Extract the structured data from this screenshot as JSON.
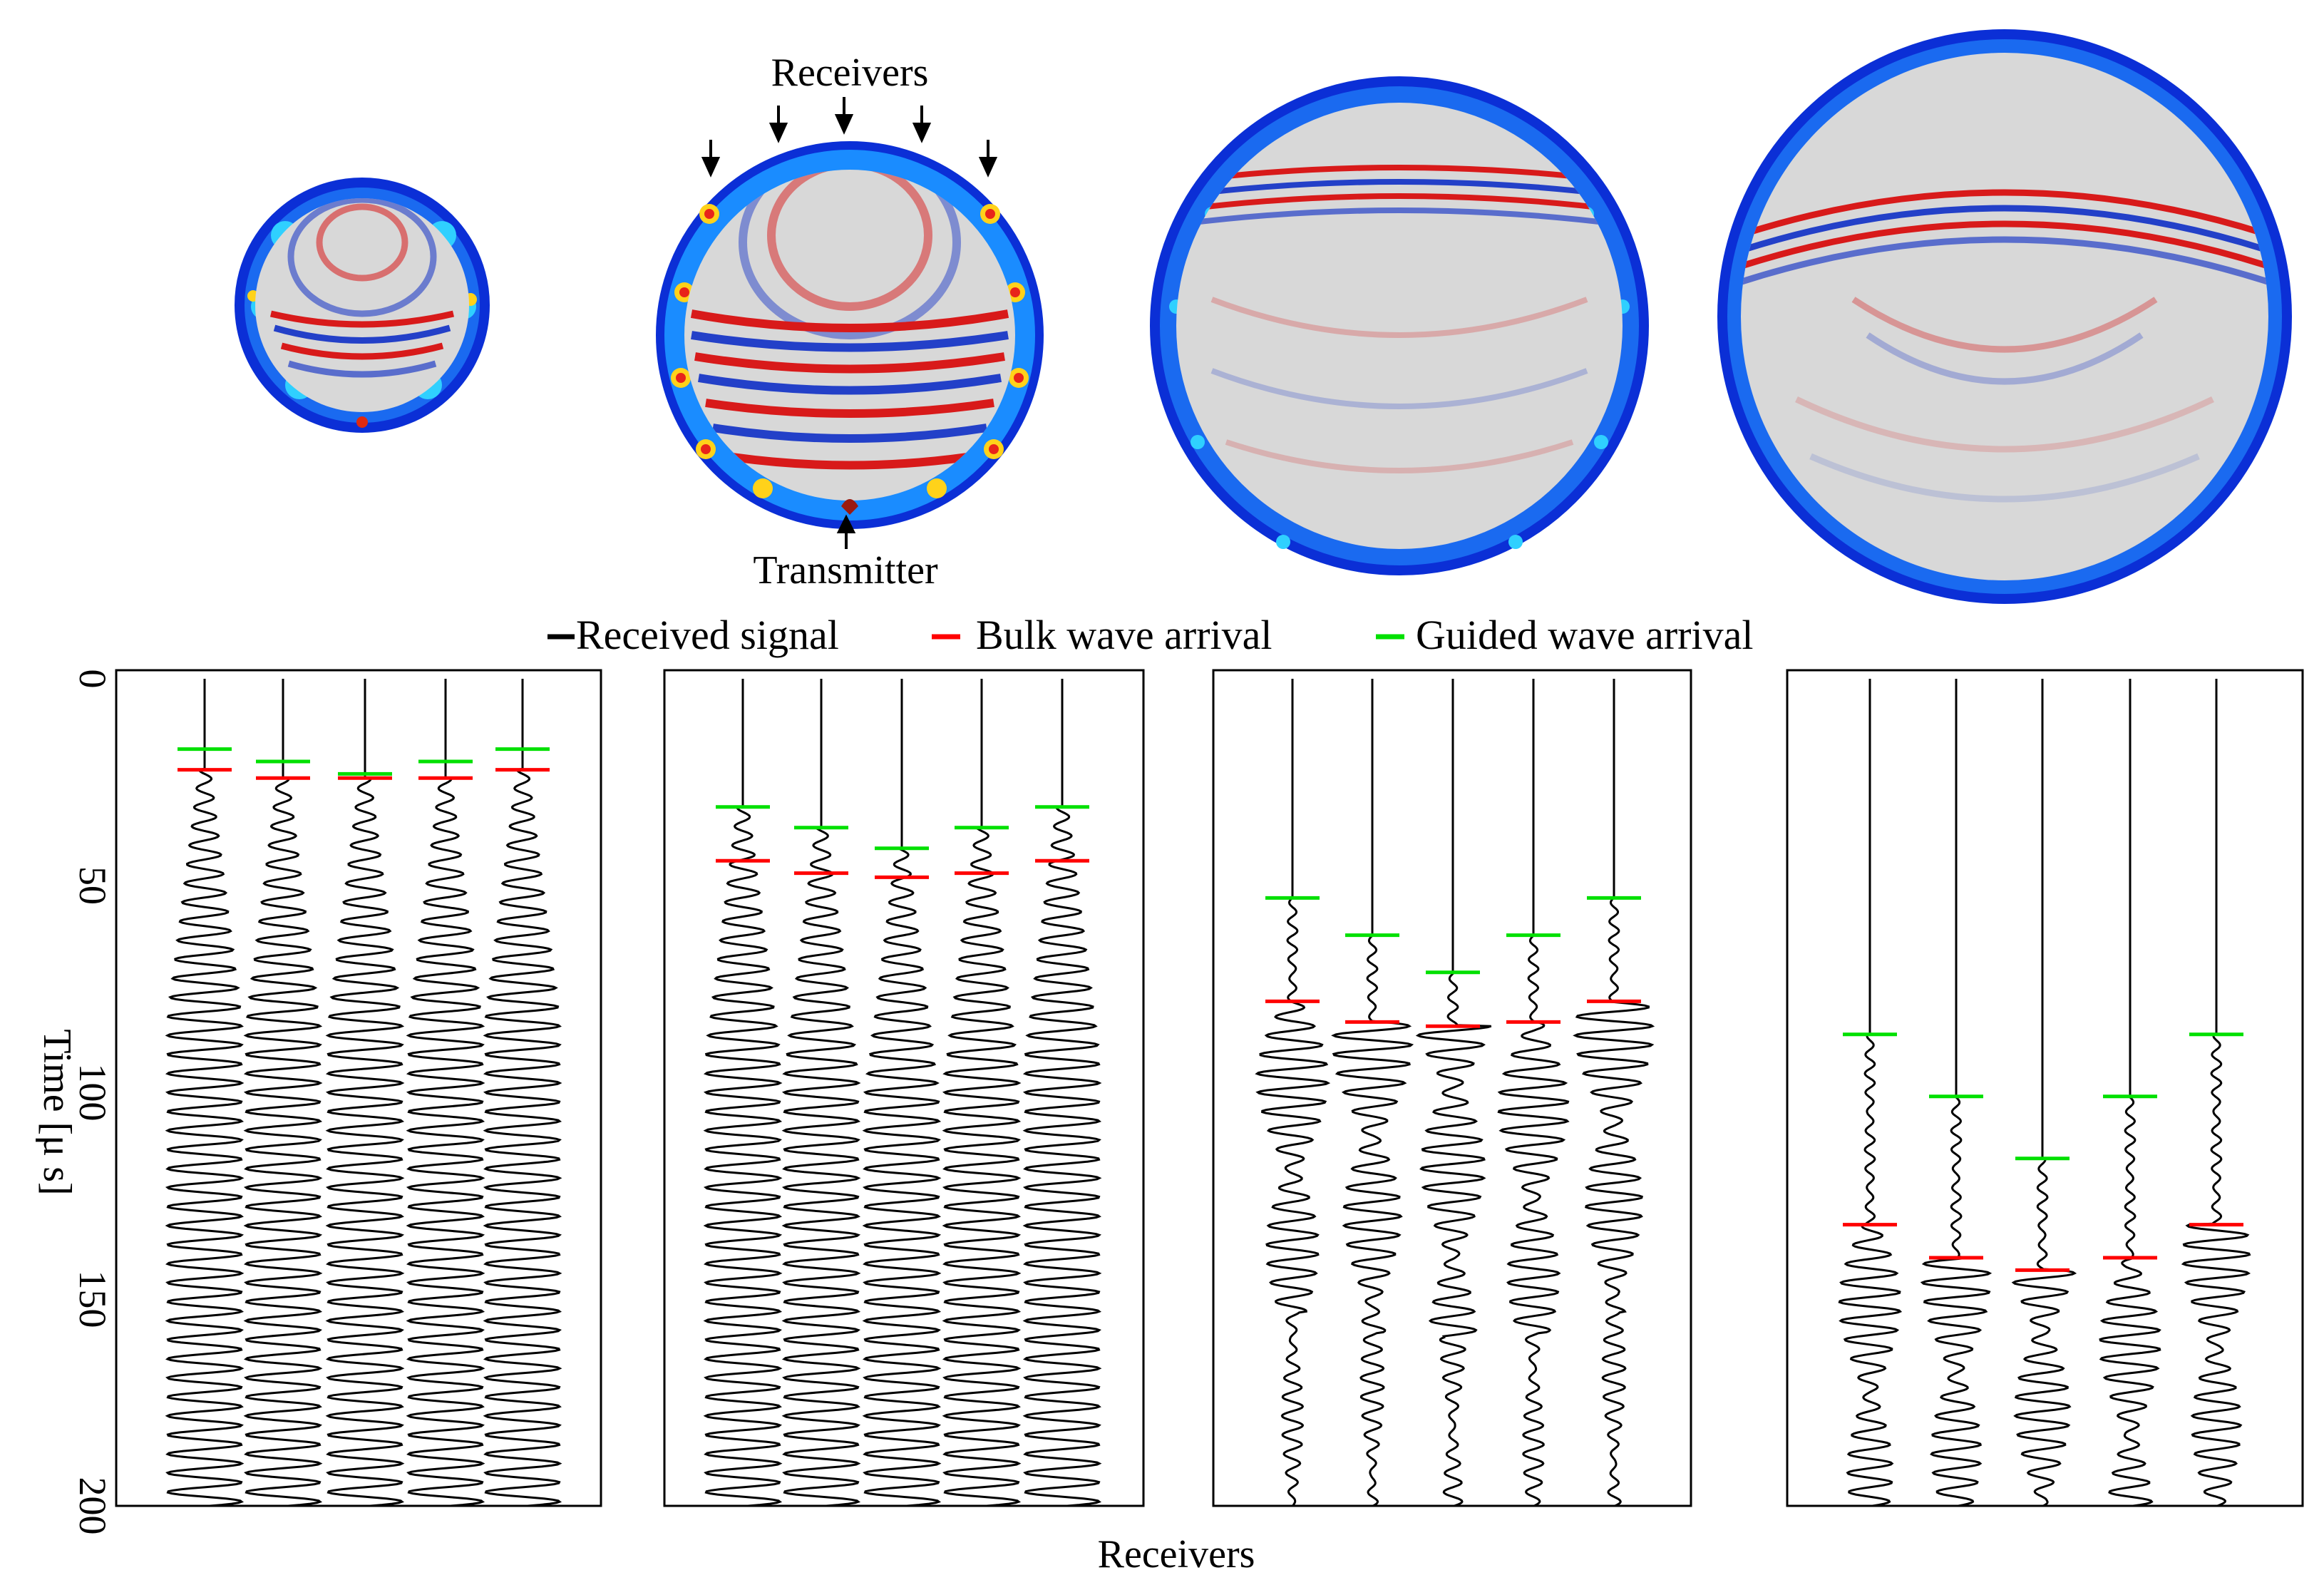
{
  "colors": {
    "signal": "#000000",
    "bulk": "#ff0000",
    "guided": "#00e000",
    "ring_dark": "#0b2fd6",
    "ring_mid": "#1a8cff",
    "ring_hot": "#ffd21a",
    "field_bg": "#d8d8d8",
    "wave_red": "#d81a1a",
    "wave_blue": "#2340c8"
  },
  "annotations": {
    "receivers": "Receivers",
    "transmitter": "Transmitter"
  },
  "legend": {
    "position": "top-center",
    "entries": [
      "Received signal",
      "Bulk wave arrival",
      "Guided wave arrival"
    ]
  },
  "chart_data": {
    "type": "line",
    "ylabel": "Time [μ s]",
    "xlabel": "Receivers",
    "ylim": [
      0,
      200
    ],
    "yticks": [
      "0",
      "50",
      "100",
      "150",
      "200"
    ],
    "grid": false,
    "panels": [
      {
        "receivers": 5,
        "guided_arrival": [
          17,
          20,
          23,
          20,
          17
        ],
        "bulk_arrival": [
          22,
          24,
          24,
          24,
          22
        ],
        "signal_onset": [
          22,
          24,
          24,
          24,
          22
        ],
        "decay": 0
      },
      {
        "receivers": 5,
        "guided_arrival": [
          31,
          36,
          41,
          36,
          31
        ],
        "bulk_arrival": [
          44,
          47,
          48,
          47,
          44
        ],
        "signal_onset": [
          31,
          36,
          41,
          36,
          31
        ],
        "decay": 0
      },
      {
        "receivers": 5,
        "guided_arrival": [
          53,
          62,
          71,
          62,
          53
        ],
        "bulk_arrival": [
          78,
          83,
          84,
          83,
          78
        ],
        "signal_onset": [
          53,
          62,
          71,
          62,
          53
        ],
        "decay": 1
      },
      {
        "receivers": 5,
        "guided_arrival": [
          86,
          101,
          116,
          101,
          86
        ],
        "bulk_arrival": [
          132,
          140,
          143,
          140,
          132
        ],
        "signal_onset": [
          86,
          101,
          116,
          101,
          86
        ],
        "decay": 2
      }
    ]
  }
}
